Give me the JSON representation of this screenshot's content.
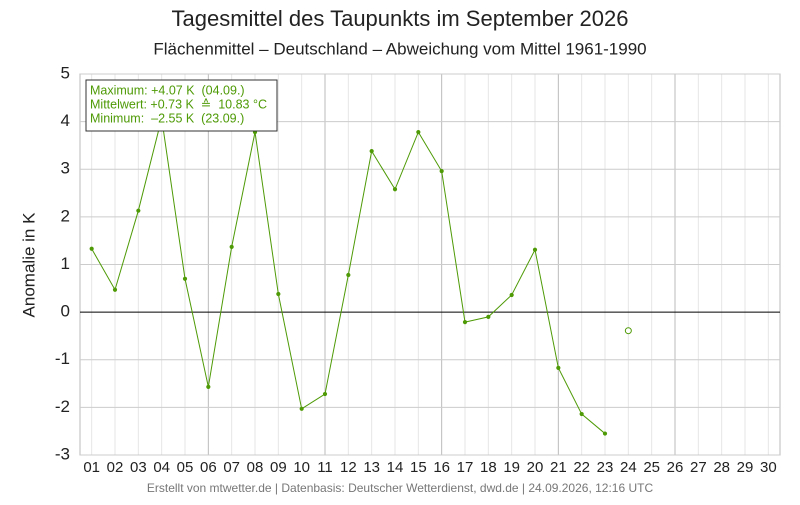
{
  "chart_data": {
    "type": "line",
    "title": "Tagesmittel des Taupunkts im September 2026",
    "subtitle": "Flächenmittel – Deutschland – Abweichung vom Mittel 1961-1990",
    "y_label": "Anomalie in K",
    "footer": "Erstellt von mtwetter.de | Datenbasis: Deutscher Wetterdienst, dwd.de | 24.09.2026, 12:16 UTC",
    "annotations": [
      "Maximum: +4.07 K  (04.09.)",
      "Mittelwert: +0.73 K  ≙  10.83 °C",
      "Minimum:  –2.55 K  (23.09.)"
    ],
    "categories": [
      "01",
      "02",
      "03",
      "04",
      "05",
      "06",
      "07",
      "08",
      "09",
      "10",
      "11",
      "12",
      "13",
      "14",
      "15",
      "16",
      "17",
      "18",
      "19",
      "20",
      "21",
      "22",
      "23",
      "24",
      "25",
      "26",
      "27",
      "28",
      "29",
      "30"
    ],
    "series": [
      {
        "color": "#4e9a06",
        "marker": "filled",
        "values": [
          1.33,
          0.47,
          2.13,
          4.07,
          0.7,
          -1.57,
          1.37,
          3.78,
          0.38,
          -2.03,
          -1.72,
          0.78,
          3.38,
          2.58,
          3.78,
          2.96,
          -0.21,
          -0.1,
          0.36,
          1.31,
          -1.17,
          -2.14,
          -2.55,
          null,
          null,
          null,
          null,
          null,
          null,
          null
        ]
      },
      {
        "color": "#4e9a06",
        "marker": "open",
        "values": [
          null,
          null,
          null,
          null,
          null,
          null,
          null,
          null,
          null,
          null,
          null,
          null,
          null,
          null,
          null,
          null,
          null,
          null,
          null,
          null,
          null,
          null,
          null,
          -0.39,
          null,
          null,
          null,
          null,
          null,
          null
        ]
      }
    ],
    "ylim": [
      -3,
      5
    ],
    "yticks": [
      -3,
      -2,
      -1,
      0,
      1,
      2,
      3,
      4,
      5
    ],
    "grid": true
  }
}
